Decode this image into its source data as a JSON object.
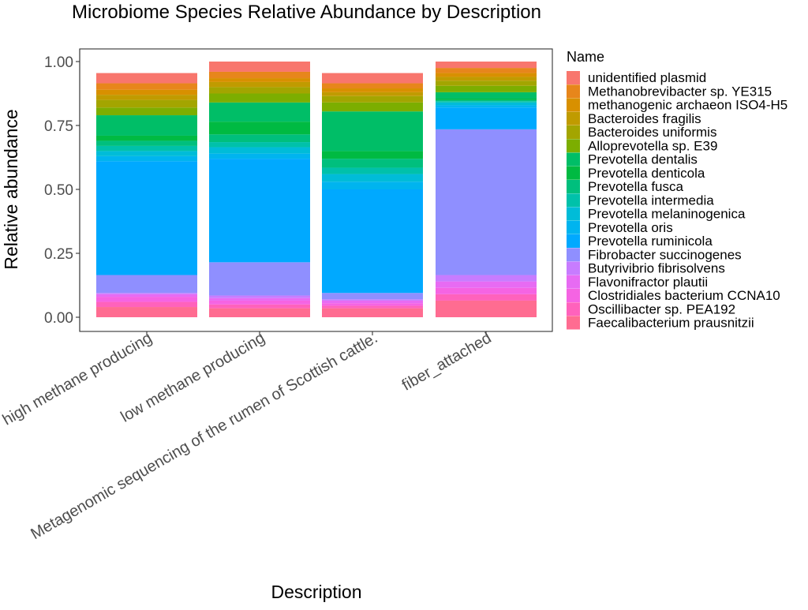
{
  "chart_data": {
    "type": "bar",
    "stacked": true,
    "title": "Microbiome Species Relative Abundance by Description",
    "xlabel": "Description",
    "ylabel": "Relative abundance",
    "ylim": [
      0,
      1
    ],
    "yticks": [
      0.0,
      0.25,
      0.5,
      0.75,
      1.0
    ],
    "ytick_labels": [
      "0.00",
      "0.25",
      "0.50",
      "0.75",
      "1.00"
    ],
    "grid": false,
    "legend_title": "Name",
    "legend_position": "right",
    "categories": [
      "high methane producing",
      "low methane producing",
      "Metagenomic sequencing of the rumen of Scottish cattle.",
      "fiber_attached"
    ],
    "series": [
      {
        "name": "Faecalibacterium prausnitzii",
        "color": "#FF6C91",
        "values": [
          0.04,
          0.035,
          0.035,
          0.065
        ]
      },
      {
        "name": "Oscillibacter sp. PEA192",
        "color": "#FF62BC",
        "values": [
          0.02,
          0.015,
          0.01,
          0.025
        ]
      },
      {
        "name": "Clostridiales bacterium CCNA10",
        "color": "#F564E3",
        "values": [
          0.02,
          0.015,
          0.01,
          0.025
        ]
      },
      {
        "name": "Flavonifractor plautii",
        "color": "#E76BF3",
        "values": [
          0.01,
          0.01,
          0.01,
          0.025
        ]
      },
      {
        "name": "Butyrivibrio fibrisolvens",
        "color": "#C77CFF",
        "values": [
          0.005,
          0.01,
          0.005,
          0.025
        ]
      },
      {
        "name": "Fibrobacter succinogenes",
        "color": "#8F8FFF",
        "values": [
          0.07,
          0.13,
          0.025,
          0.57
        ]
      },
      {
        "name": "Prevotella ruminicola",
        "color": "#00A9FF",
        "values": [
          0.445,
          0.405,
          0.405,
          0.085
        ]
      },
      {
        "name": "Prevotella oris",
        "color": "#00B4EF",
        "values": [
          0.02,
          0.02,
          0.03,
          0.01
        ]
      },
      {
        "name": "Prevotella melaninogenica",
        "color": "#00BCD8",
        "values": [
          0.02,
          0.025,
          0.03,
          0.01
        ]
      },
      {
        "name": "Prevotella intermedia",
        "color": "#00C1AA",
        "values": [
          0.02,
          0.02,
          0.025,
          0.005
        ]
      },
      {
        "name": "Prevotella fusca",
        "color": "#00BF7D",
        "values": [
          0.02,
          0.03,
          0.035,
          0.005
        ]
      },
      {
        "name": "Prevotella denticola",
        "color": "#00BA42",
        "values": [
          0.02,
          0.05,
          0.03,
          0.005
        ]
      },
      {
        "name": "Prevotella dentalis",
        "color": "#00BE67",
        "values": [
          0.08,
          0.075,
          0.155,
          0.025
        ]
      },
      {
        "name": "Alloprevotella sp. E39",
        "color": "#7CAE00",
        "values": [
          0.03,
          0.035,
          0.035,
          0.025
        ]
      },
      {
        "name": "Bacteroides uniformis",
        "color": "#A3A500",
        "values": [
          0.03,
          0.025,
          0.025,
          0.02
        ]
      },
      {
        "name": "Bacteroides fragilis",
        "color": "#C09B00",
        "values": [
          0.02,
          0.02,
          0.015,
          0.015
        ]
      },
      {
        "name": "methanogenic archaeon ISO4-H5",
        "color": "#D89000",
        "values": [
          0.02,
          0.015,
          0.015,
          0.015
        ]
      },
      {
        "name": "Methanobrevibacter sp. YE315",
        "color": "#E7861B",
        "values": [
          0.025,
          0.025,
          0.02,
          0.02
        ]
      },
      {
        "name": "unidentified plasmid",
        "color": "#F8766D",
        "values": [
          0.04,
          0.04,
          0.04,
          0.025
        ]
      }
    ],
    "legend_order": [
      "unidentified plasmid",
      "Methanobrevibacter sp. YE315",
      "methanogenic archaeon ISO4-H5",
      "Bacteroides fragilis",
      "Bacteroides uniformis",
      "Alloprevotella sp. E39",
      "Prevotella dentalis",
      "Prevotella denticola",
      "Prevotella fusca",
      "Prevotella intermedia",
      "Prevotella melaninogenica",
      "Prevotella oris",
      "Prevotella ruminicola",
      "Fibrobacter succinogenes",
      "Butyrivibrio fibrisolvens",
      "Flavonifractor plautii",
      "Clostridiales bacterium CCNA10",
      "Oscillibacter sp. PEA192",
      "Faecalibacterium prausnitzii"
    ]
  }
}
